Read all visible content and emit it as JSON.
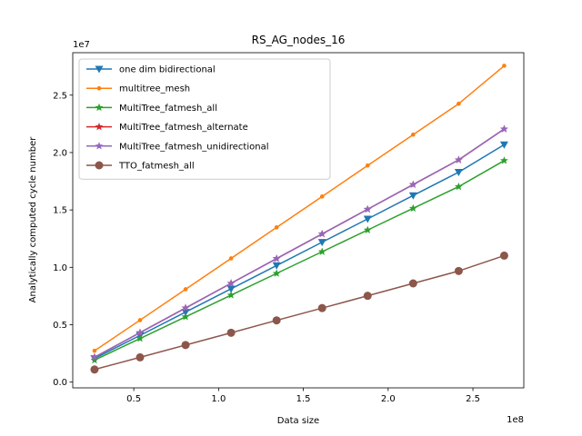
{
  "chart_data": {
    "type": "line",
    "title": "RS_AG_nodes_16",
    "xlabel": "Data size",
    "ylabel": "Analytically computed cycle number",
    "x_offset_label": "1e8",
    "y_offset_label": "1e7",
    "x_scale": 100000000,
    "y_scale": 10000000,
    "xlim": [
      0.14,
      2.8
    ],
    "ylim": [
      -0.05,
      2.87
    ],
    "x_ticks": [
      0.5,
      1.0,
      1.5,
      2.0,
      2.5
    ],
    "x_tick_labels": [
      "0.5",
      "1.0",
      "1.5",
      "2.0",
      "2.5"
    ],
    "y_ticks": [
      0.0,
      0.5,
      1.0,
      1.5,
      2.0,
      2.5
    ],
    "y_tick_labels": [
      "0.0",
      "0.5",
      "1.0",
      "1.5",
      "2.0",
      "2.5"
    ],
    "grid": false,
    "legend_position": "top-left",
    "x": [
      26843545,
      53687091,
      80530636,
      107374182,
      134217728,
      161061273,
      187904819,
      214748364,
      241591910,
      268435456
    ],
    "series": [
      {
        "name": "one dim bidirectional",
        "color": "#1f77b4",
        "marker": "triangle-down",
        "values": [
          2060000,
          4070000,
          6100000,
          8130000,
          10160000,
          12190000,
          14220000,
          16260000,
          18290000,
          20690000
        ]
      },
      {
        "name": "multitree_mesh",
        "color": "#ff7f0e",
        "marker": "point",
        "values": [
          2730000,
          5400000,
          8090000,
          10780000,
          13480000,
          16170000,
          18870000,
          21560000,
          24250000,
          27560000
        ]
      },
      {
        "name": "MultiTree_fatmesh_all",
        "color": "#2ca02c",
        "marker": "star",
        "values": [
          1920000,
          3800000,
          5690000,
          7580000,
          9470000,
          11360000,
          13250000,
          15140000,
          17030000,
          19300000
        ]
      },
      {
        "name": "MultiTree_fatmesh_alternate",
        "color": "#d62728",
        "marker": "star",
        "values": [
          2170000,
          4310000,
          6460000,
          8610000,
          10760000,
          12910000,
          15060000,
          17210000,
          19360000,
          22050000
        ]
      },
      {
        "name": "MultiTree_fatmesh_unidirectional",
        "color": "#9467bd",
        "marker": "star",
        "values": [
          2170000,
          4310000,
          6460000,
          8610000,
          10760000,
          12910000,
          15060000,
          17210000,
          19360000,
          22050000
        ]
      },
      {
        "name": "TTO_fatmesh_all",
        "color": "#8c564b",
        "marker": "circle",
        "values": [
          1100000,
          2160000,
          3230000,
          4300000,
          5380000,
          6450000,
          7520000,
          8600000,
          9680000,
          11020000
        ]
      }
    ]
  }
}
